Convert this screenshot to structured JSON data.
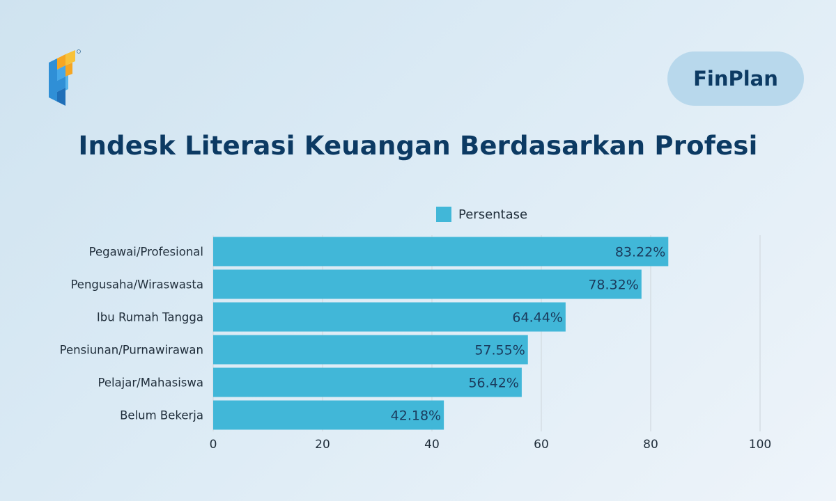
{
  "brand": {
    "name": "FinPlan"
  },
  "colors": {
    "bar": "#41b7d8",
    "title": "#0c3a63",
    "grid": "#d5dde4",
    "text": "#1f2d3a",
    "value_label": "#1a3a5c"
  },
  "chart_data": {
    "type": "bar",
    "orientation": "horizontal",
    "title": "Indesk Literasi Keuangan Berdasarkan Profesi",
    "categories": [
      "Pegawai/Profesional",
      "Pengusaha/Wiraswasta",
      "Ibu Rumah Tangga",
      "Pensiunan/Purnawirawan",
      "Pelajar/Mahasiswa",
      "Belum Bekerja"
    ],
    "series": [
      {
        "name": "Persentase",
        "values": [
          83.22,
          78.32,
          64.44,
          57.55,
          56.42,
          42.18
        ],
        "labels": [
          "83.22%",
          "78.32%",
          "64.44%",
          "57.55%",
          "56.42%",
          "42.18%"
        ]
      }
    ],
    "xlim": [
      0,
      100
    ],
    "xticks": [
      0,
      20,
      40,
      60,
      80,
      100
    ],
    "grid": true,
    "legend": "top-center"
  }
}
